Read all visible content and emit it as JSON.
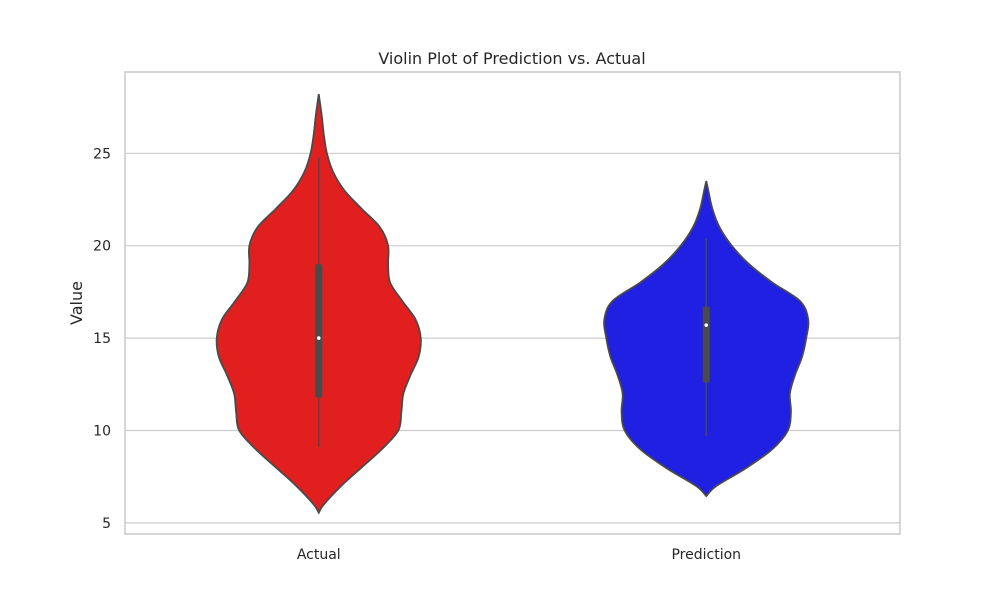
{
  "chart_data": {
    "type": "violin",
    "title": "Violin Plot of Prediction vs. Actual",
    "xlabel": "",
    "ylabel": "Value",
    "categories": [
      "Actual",
      "Prediction"
    ],
    "ylim": [
      4.4,
      29.4
    ],
    "yticks": [
      5,
      10,
      15,
      20,
      25
    ],
    "grid": true,
    "series": [
      {
        "category": "Actual",
        "color": "#e11f1f",
        "min": 5.55,
        "max": 28.2,
        "whisker_low": 9.1,
        "whisker_high": 24.8,
        "q1": 11.8,
        "median": 15.0,
        "q3": 19.0,
        "density": [
          [
            5.55,
            0.0
          ],
          [
            6.0,
            0.05
          ],
          [
            7.0,
            0.22
          ],
          [
            8.0,
            0.42
          ],
          [
            9.0,
            0.62
          ],
          [
            10.0,
            0.78
          ],
          [
            11.0,
            0.81
          ],
          [
            12.0,
            0.83
          ],
          [
            13.0,
            0.9
          ],
          [
            14.0,
            0.98
          ],
          [
            15.0,
            1.0
          ],
          [
            16.0,
            0.95
          ],
          [
            17.0,
            0.82
          ],
          [
            18.0,
            0.7
          ],
          [
            19.0,
            0.68
          ],
          [
            20.0,
            0.68
          ],
          [
            21.0,
            0.6
          ],
          [
            22.0,
            0.42
          ],
          [
            23.0,
            0.25
          ],
          [
            24.0,
            0.14
          ],
          [
            25.0,
            0.08
          ],
          [
            26.0,
            0.05
          ],
          [
            27.0,
            0.03
          ],
          [
            28.2,
            0.0
          ]
        ]
      },
      {
        "category": "Prediction",
        "color": "#2020e3",
        "min": 6.45,
        "max": 23.5,
        "whisker_low": 9.7,
        "whisker_high": 20.4,
        "q1": 12.6,
        "median": 15.7,
        "q3": 16.7,
        "density": [
          [
            6.45,
            0.0
          ],
          [
            7.0,
            0.1
          ],
          [
            8.0,
            0.4
          ],
          [
            9.0,
            0.65
          ],
          [
            10.0,
            0.8
          ],
          [
            11.0,
            0.83
          ],
          [
            12.0,
            0.82
          ],
          [
            13.0,
            0.87
          ],
          [
            14.0,
            0.94
          ],
          [
            15.0,
            0.98
          ],
          [
            16.0,
            1.0
          ],
          [
            17.0,
            0.92
          ],
          [
            18.0,
            0.65
          ],
          [
            19.0,
            0.42
          ],
          [
            20.0,
            0.25
          ],
          [
            21.0,
            0.13
          ],
          [
            22.0,
            0.06
          ],
          [
            23.0,
            0.02
          ],
          [
            23.5,
            0.0
          ]
        ]
      }
    ]
  }
}
